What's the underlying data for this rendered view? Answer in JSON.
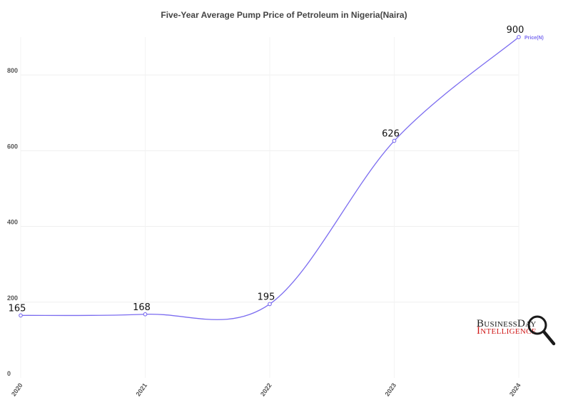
{
  "chart_data": {
    "type": "line",
    "title": "Five-Year Average Pump Price of Petroleum in Nigeria(Naira)",
    "xlabel": "",
    "ylabel": "",
    "categories": [
      "2020",
      "2021",
      "2022",
      "2023",
      "2024"
    ],
    "series": [
      {
        "name": "Price(N)",
        "values": [
          165,
          168,
          195,
          626,
          900
        ],
        "color": "#7b6cf0"
      }
    ],
    "yticks": [
      0,
      200,
      400,
      600,
      800
    ],
    "ylim": [
      0,
      900
    ],
    "grid": true,
    "legend": "top-right",
    "smooth": true
  },
  "logo": {
    "top_text": "BusinessDay",
    "bottom_text": "Intelligence",
    "icon": "magnifier-icon",
    "top_color": "#1a1a1a",
    "bottom_color": "#d01818"
  }
}
